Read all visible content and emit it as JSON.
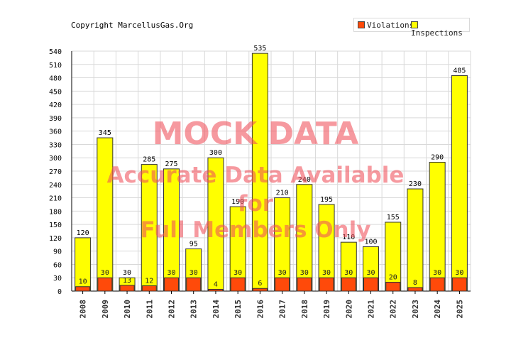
{
  "header": {
    "copyright": "Copyright MarcellusGas.Org"
  },
  "legend": {
    "violations": "Violations",
    "inspections": "Inspections"
  },
  "watermark": {
    "line1": "MOCK DATA",
    "line2": "Accurate Data Available",
    "line3": "for",
    "line4": "Full Members Only"
  },
  "colors": {
    "violations": "#ff4a0a",
    "inspections": "#ffff00",
    "bar_border": "#333333",
    "grid": "#d9d9d9"
  },
  "chart_data": {
    "type": "bar",
    "categories": [
      "2008",
      "2009",
      "2010",
      "2011",
      "2012",
      "2013",
      "2014",
      "2015",
      "2016",
      "2017",
      "2018",
      "2019",
      "2020",
      "2021",
      "2022",
      "2023",
      "2024",
      "2025"
    ],
    "series": [
      {
        "name": "Violations",
        "values": [
          10,
          30,
          13,
          12,
          30,
          30,
          4,
          30,
          6,
          30,
          30,
          30,
          30,
          30,
          20,
          8,
          30,
          30
        ]
      },
      {
        "name": "Inspections",
        "values": [
          120,
          345,
          30,
          285,
          275,
          95,
          300,
          190,
          535,
          210,
          240,
          195,
          110,
          100,
          155,
          230,
          290,
          485
        ]
      }
    ],
    "ylim": [
      0,
      540
    ],
    "yticks": [
      0,
      30,
      60,
      90,
      120,
      150,
      180,
      210,
      240,
      270,
      300,
      330,
      360,
      390,
      420,
      450,
      480,
      510,
      540
    ],
    "grid": true,
    "legend_position": "top-right",
    "title": "",
    "xlabel": "",
    "ylabel": ""
  }
}
